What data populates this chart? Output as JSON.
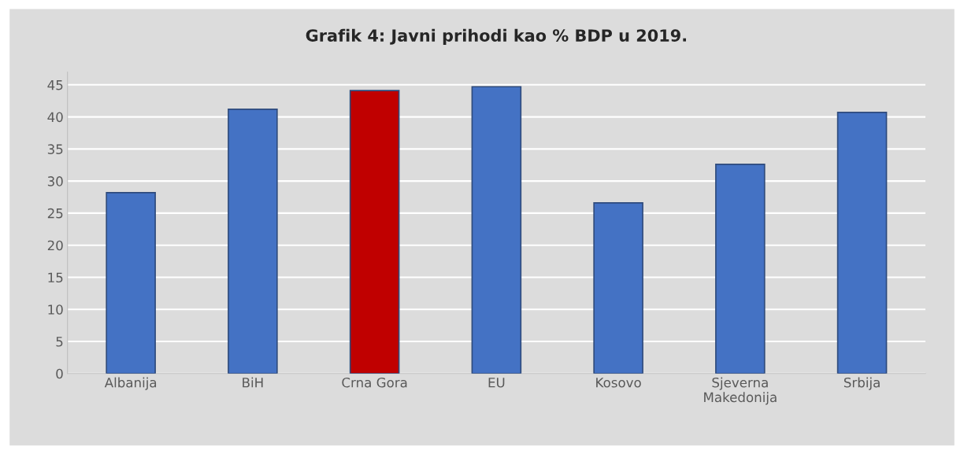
{
  "chart_data": {
    "type": "bar",
    "title": "Grafik 4: Javni prihodi kao % BDP u 2019.",
    "categories": [
      "Albanija",
      "BiH",
      "Crna Gora",
      "EU",
      "Kosovo",
      "Sjeverna\nMakedonija",
      "Srbija"
    ],
    "values": [
      28.2,
      41.2,
      44.1,
      44.7,
      26.6,
      32.6,
      40.7
    ],
    "colors": [
      "#4472c4",
      "#4472c4",
      "#c00000",
      "#4472c4",
      "#4472c4",
      "#4472c4",
      "#4472c4"
    ],
    "ylim": [
      0,
      47
    ],
    "yticks": [
      0,
      5,
      10,
      15,
      20,
      25,
      30,
      35,
      40,
      45
    ],
    "grid": "y"
  }
}
